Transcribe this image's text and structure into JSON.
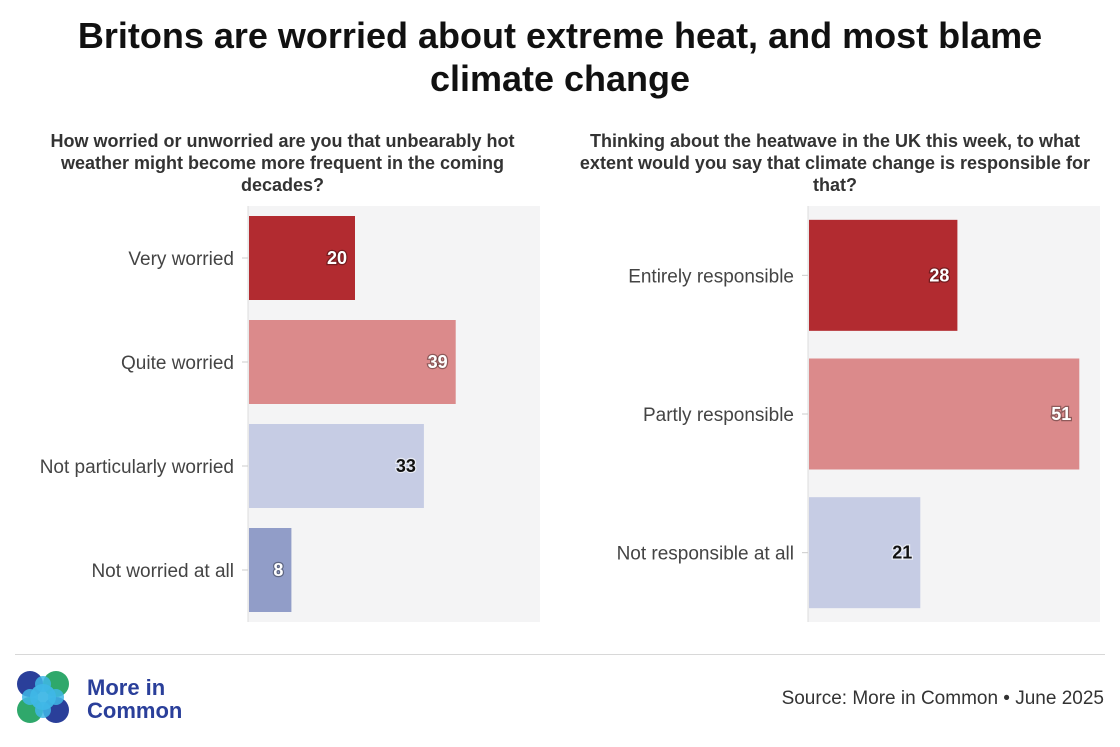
{
  "title": "Britons are worried about extreme heat, and most blame climate change",
  "chart_data": [
    {
      "type": "bar",
      "orientation": "horizontal",
      "title": "How worried or unworried are you that unbearably hot weather might become more frequent in the coming decades?",
      "categories": [
        "Very worried",
        "Quite worried",
        "Not particularly worried",
        "Not worried at all"
      ],
      "values": [
        20,
        39,
        33,
        8
      ],
      "colors": [
        "#b22b30",
        "#db8a8b",
        "#c6cce4",
        "#919dc8"
      ],
      "label_colors": [
        "#ffffff",
        "#ffffff",
        "#111111",
        "#ffffff"
      ],
      "xlim": [
        0,
        55
      ],
      "xlabel": "",
      "ylabel": ""
    },
    {
      "type": "bar",
      "orientation": "horizontal",
      "title": "Thinking about the heatwave in the UK this week, to what extent would you say that climate change is responsible for that?",
      "categories": [
        "Entirely responsible",
        "Partly responsible",
        "Not responsible at all"
      ],
      "values": [
        28,
        51,
        21
      ],
      "colors": [
        "#b22b30",
        "#db8a8b",
        "#c6cce4"
      ],
      "label_colors": [
        "#ffffff",
        "#ffffff",
        "#111111"
      ],
      "xlim": [
        0,
        55
      ],
      "xlabel": "",
      "ylabel": ""
    }
  ],
  "footer": {
    "logo_line1": "More in",
    "logo_line2": "Common",
    "source": "Source: More in Common • June 2025"
  }
}
